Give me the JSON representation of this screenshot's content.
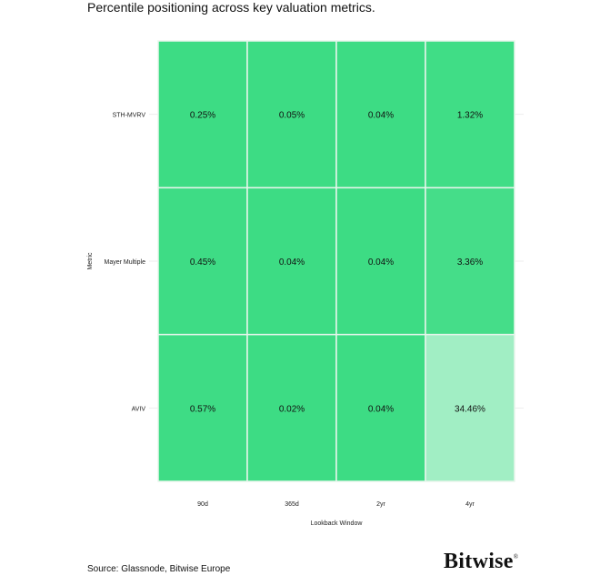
{
  "subtitle": "Percentile positioning across key valuation metrics.",
  "source": "Source: Glassnode, Bitwise Europe",
  "logo": "Bitwise",
  "chart_data": {
    "type": "heatmap",
    "xlabel": "Lookback Window",
    "ylabel": "Metric",
    "x_categories": [
      "90d",
      "365d",
      "2yr",
      "4yr"
    ],
    "y_categories": [
      "STH-MVRV",
      "Mayer Multiple",
      "AVIV"
    ],
    "values": [
      [
        0.25,
        0.05,
        0.04,
        1.32
      ],
      [
        0.45,
        0.04,
        0.04,
        3.36
      ],
      [
        0.57,
        0.02,
        0.04,
        34.46
      ]
    ],
    "labels": [
      [
        "0.25%",
        "0.05%",
        "0.04%",
        "1.32%"
      ],
      [
        "0.45%",
        "0.04%",
        "0.04%",
        "3.36%"
      ],
      [
        "0.57%",
        "0.02%",
        "0.04%",
        "34.46%"
      ]
    ],
    "color_low": "#3ddc84",
    "color_high": "#ffffff",
    "grid": false
  }
}
